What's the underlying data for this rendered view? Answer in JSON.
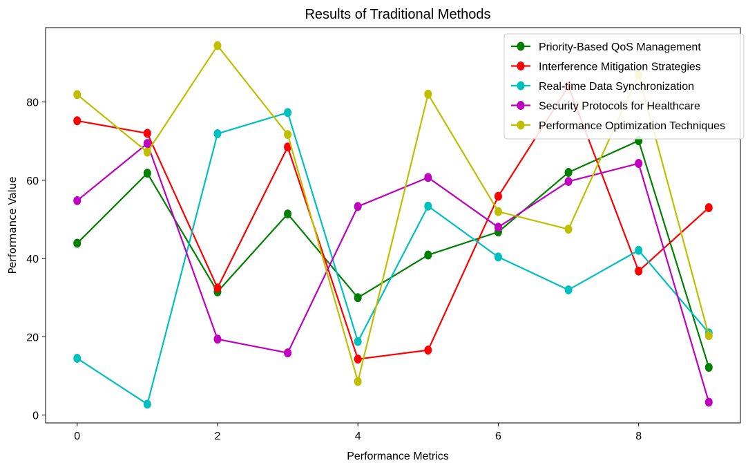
{
  "chart_data": {
    "type": "line",
    "title": "Results of Traditional Methods",
    "xlabel": "Performance Metrics",
    "ylabel": "Performance Value",
    "x": [
      0,
      1,
      2,
      3,
      4,
      5,
      6,
      7,
      8,
      9
    ],
    "xlim": [
      -0.45,
      9.45
    ],
    "ylim": [
      -2,
      99
    ],
    "xticks": [
      0,
      2,
      4,
      6,
      8
    ],
    "yticks": [
      0,
      20,
      40,
      60,
      80
    ],
    "grid": false,
    "legend_position": "top-right",
    "series": [
      {
        "name": "Priority-Based QoS Management",
        "color": "#008000",
        "values": [
          43.9,
          61.8,
          31.5,
          51.4,
          30.0,
          40.9,
          46.8,
          62.0,
          70.1,
          12.2
        ]
      },
      {
        "name": "Interference Mitigation Strategies",
        "color": "#ff0000",
        "values": [
          75.2,
          72.0,
          32.5,
          68.5,
          14.3,
          16.6,
          55.9,
          84.0,
          36.8,
          53.0
        ]
      },
      {
        "name": "Real-time Data Synchronization",
        "color": "#00bfbf",
        "values": [
          14.5,
          2.8,
          71.9,
          77.3,
          18.8,
          53.4,
          40.4,
          32.0,
          42.1,
          21.0
        ]
      },
      {
        "name": "Security Protocols for Healthcare",
        "color": "#bf00bf",
        "values": [
          54.8,
          69.4,
          19.4,
          15.9,
          53.3,
          60.7,
          48.0,
          59.7,
          64.3,
          3.3
        ]
      },
      {
        "name": "Performance Optimization Techniques",
        "color": "#bfbf00",
        "values": [
          81.9,
          67.2,
          94.4,
          71.7,
          8.6,
          82.0,
          52.0,
          47.5,
          87.0,
          20.3
        ]
      }
    ]
  }
}
